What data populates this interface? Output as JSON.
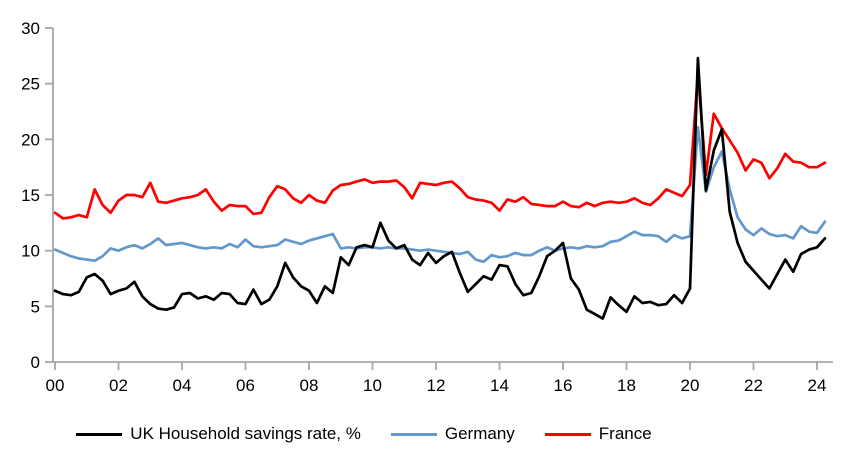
{
  "chart_data": {
    "type": "line",
    "title": "",
    "frequency": "quarterly",
    "x_start": "2000Q1",
    "x_end": "2024Q2",
    "x_tick_labels": [
      "00",
      "02",
      "04",
      "06",
      "08",
      "10",
      "12",
      "14",
      "16",
      "18",
      "20",
      "22",
      "24"
    ],
    "y_ticks": [
      0,
      5,
      10,
      15,
      20,
      25,
      30
    ],
    "ylim": [
      0,
      30
    ],
    "grid": false,
    "legend_position": "bottom",
    "axis_color": "#A6A6A6",
    "background_color": "#FFFFFF",
    "series": [
      {
        "name": "UK Household savings rate, %",
        "color": "#000000",
        "values": [
          6.4,
          6.1,
          6.0,
          6.3,
          7.6,
          7.9,
          7.3,
          6.1,
          6.4,
          6.6,
          7.2,
          5.9,
          5.2,
          4.8,
          4.7,
          4.9,
          6.1,
          6.2,
          5.7,
          5.9,
          5.6,
          6.2,
          6.1,
          5.3,
          5.2,
          6.5,
          5.2,
          5.6,
          6.8,
          8.9,
          7.6,
          6.8,
          6.4,
          5.3,
          6.8,
          6.2,
          9.4,
          8.7,
          10.3,
          10.5,
          10.3,
          12.5,
          10.9,
          10.2,
          10.5,
          9.2,
          8.7,
          9.8,
          8.9,
          9.5,
          9.9,
          8.0,
          6.3,
          7.0,
          7.7,
          7.4,
          8.7,
          8.6,
          7.0,
          6.0,
          6.2,
          7.7,
          9.5,
          10.0,
          10.7,
          7.5,
          6.5,
          4.7,
          4.3,
          3.9,
          5.8,
          5.1,
          4.5,
          5.9,
          5.3,
          5.4,
          5.1,
          5.2,
          6.0,
          5.3,
          6.6,
          27.3,
          15.4,
          19.0,
          20.9,
          13.5,
          10.7,
          9.0,
          8.2,
          7.4,
          6.6,
          7.9,
          9.2,
          8.1,
          9.7,
          10.1,
          10.3,
          11.1
        ]
      },
      {
        "name": "Germany",
        "color": "#6398CB",
        "values": [
          10.1,
          9.8,
          9.5,
          9.3,
          9.2,
          9.1,
          9.5,
          10.2,
          10.0,
          10.3,
          10.5,
          10.2,
          10.6,
          11.1,
          10.5,
          10.6,
          10.7,
          10.5,
          10.3,
          10.2,
          10.3,
          10.2,
          10.6,
          10.3,
          11.0,
          10.4,
          10.3,
          10.4,
          10.5,
          11.0,
          10.8,
          10.6,
          10.9,
          11.1,
          11.3,
          11.5,
          10.2,
          10.3,
          10.2,
          10.3,
          10.3,
          10.2,
          10.3,
          10.2,
          10.2,
          10.1,
          10.0,
          10.1,
          10.0,
          9.9,
          9.8,
          9.7,
          9.9,
          9.2,
          9.0,
          9.6,
          9.4,
          9.5,
          9.8,
          9.6,
          9.6,
          10.0,
          10.3,
          10.0,
          10.2,
          10.3,
          10.2,
          10.4,
          10.3,
          10.4,
          10.8,
          10.9,
          11.3,
          11.7,
          11.4,
          11.4,
          11.3,
          10.8,
          11.4,
          11.1,
          11.3,
          21.1,
          15.3,
          17.5,
          18.9,
          15.5,
          13.0,
          11.9,
          11.4,
          12.0,
          11.5,
          11.3,
          11.4,
          11.1,
          12.2,
          11.7,
          11.6,
          12.6
        ]
      },
      {
        "name": "France",
        "color": "#FF0000",
        "values": [
          13.4,
          12.9,
          13.0,
          13.2,
          13.0,
          15.5,
          14.1,
          13.4,
          14.5,
          15.0,
          15.0,
          14.8,
          16.1,
          14.4,
          14.3,
          14.5,
          14.7,
          14.8,
          15.0,
          15.5,
          14.4,
          13.6,
          14.1,
          14.0,
          14.0,
          13.3,
          13.4,
          14.8,
          15.8,
          15.5,
          14.7,
          14.3,
          15.0,
          14.5,
          14.3,
          15.4,
          15.9,
          16.0,
          16.2,
          16.4,
          16.1,
          16.2,
          16.2,
          16.3,
          15.7,
          14.7,
          16.1,
          16.0,
          15.9,
          16.1,
          16.2,
          15.6,
          14.8,
          14.6,
          14.5,
          14.3,
          13.6,
          14.6,
          14.4,
          14.8,
          14.2,
          14.1,
          14.0,
          14.0,
          14.4,
          14.0,
          13.9,
          14.3,
          14.0,
          14.3,
          14.4,
          14.3,
          14.4,
          14.7,
          14.3,
          14.1,
          14.7,
          15.5,
          15.2,
          14.9,
          15.9,
          26.0,
          16.8,
          22.3,
          21.0,
          19.9,
          18.8,
          17.2,
          18.2,
          17.9,
          16.5,
          17.4,
          18.7,
          18.0,
          17.9,
          17.5,
          17.5,
          17.9
        ]
      }
    ]
  }
}
